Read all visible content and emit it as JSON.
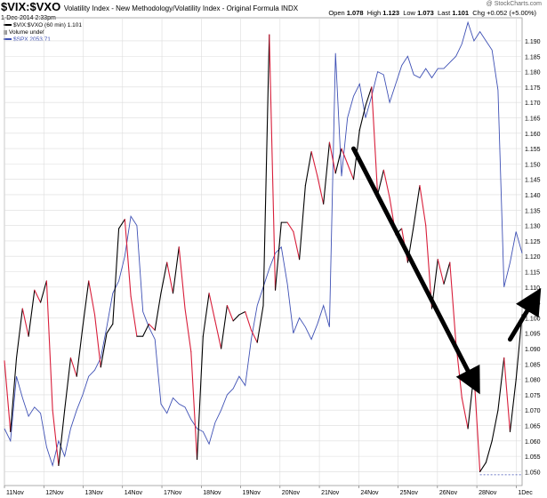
{
  "header": {
    "symbol": "$VIX:$VXO",
    "description": "Volatility Index - New Methodology/Volatility Index - Original Formula INDX",
    "date": "1-Dec-2014 2:33pm",
    "open_label": "Open",
    "open": "1.078",
    "high_label": "High",
    "high": "1.123",
    "low_label": "Low",
    "low": "1.073",
    "last_label": "Last",
    "last": "1.101",
    "chg_label": "Chg",
    "chg": "+0.052 (+5.00%)",
    "watermark": "@ StockCharts.com"
  },
  "legend": [
    {
      "label": "$VIX:$VXO (60 min) 1.101",
      "color": "#000000"
    },
    {
      "label": "Volume undef",
      "color": "#9a9a9a"
    },
    {
      "label": "$SPX 2053.71",
      "color": "#3f51b5"
    }
  ],
  "chart_data": {
    "type": "line",
    "x_labels": [
      "11Nov",
      "12Nov",
      "13Nov",
      "14Nov",
      "17Nov",
      "18Nov",
      "19Nov",
      "20Nov",
      "21Nov",
      "24Nov",
      "25Nov",
      "26Nov",
      "28Nov",
      "1Dec"
    ],
    "y_ticks": [
      1.05,
      1.055,
      1.06,
      1.065,
      1.07,
      1.075,
      1.08,
      1.085,
      1.09,
      1.095,
      1.1,
      1.105,
      1.11,
      1.115,
      1.12,
      1.125,
      1.13,
      1.135,
      1.14,
      1.145,
      1.15,
      1.155,
      1.16,
      1.165,
      1.17,
      1.175,
      1.18,
      1.185,
      1.19
    ],
    "ylim": [
      1.0455,
      1.1975
    ],
    "series": [
      {
        "name": "$VIX:$VXO (60 min) 1.101",
        "colors": {
          "up": "#000000",
          "down": "#d81e3a"
        },
        "values": [
          1.086,
          1.063,
          1.087,
          1.103,
          1.094,
          1.109,
          1.105,
          1.112,
          1.07,
          1.052,
          1.07,
          1.087,
          1.081,
          1.097,
          1.112,
          1.101,
          1.084,
          1.095,
          1.098,
          1.129,
          1.132,
          1.107,
          1.094,
          1.094,
          1.098,
          1.096,
          1.108,
          1.118,
          1.108,
          1.123,
          1.103,
          1.089,
          1.054,
          1.094,
          1.108,
          1.099,
          1.09,
          1.104,
          1.099,
          1.101,
          1.102,
          1.096,
          1.092,
          1.104,
          1.192,
          1.109,
          1.131,
          1.131,
          1.128,
          1.119,
          1.143,
          1.154,
          1.146,
          1.137,
          1.157,
          1.147,
          1.155,
          1.15,
          1.145,
          1.161,
          1.169,
          1.175,
          1.14,
          1.148,
          1.139,
          1.127,
          1.129,
          1.118,
          1.13,
          1.143,
          1.13,
          1.103,
          1.119,
          1.111,
          1.118,
          1.092,
          1.074,
          1.064,
          1.082,
          1.05,
          1.053,
          1.06,
          1.07,
          1.087,
          1.063,
          1.08,
          1.101
        ]
      },
      {
        "name": "$SPX 2053.71",
        "color": "#3f51b5",
        "values": [
          1.064,
          1.06,
          1.081,
          1.074,
          1.068,
          1.071,
          1.069,
          1.058,
          1.052,
          1.06,
          1.055,
          1.064,
          1.07,
          1.075,
          1.081,
          1.083,
          1.087,
          1.097,
          1.108,
          1.112,
          1.12,
          1.133,
          1.13,
          1.102,
          1.097,
          1.093,
          1.072,
          1.069,
          1.074,
          1.072,
          1.071,
          1.067,
          1.064,
          1.063,
          1.059,
          1.066,
          1.07,
          1.075,
          1.077,
          1.081,
          1.078,
          1.093,
          1.104,
          1.11,
          1.116,
          1.121,
          1.123,
          1.111,
          1.095,
          1.1,
          1.097,
          1.093,
          1.098,
          1.104,
          1.097,
          1.186,
          1.146,
          1.165,
          1.172,
          1.176,
          1.165,
          1.172,
          1.18,
          1.179,
          1.17,
          1.176,
          1.182,
          1.185,
          1.179,
          1.178,
          1.181,
          1.178,
          1.181,
          1.181,
          1.183,
          1.185,
          1.189,
          1.196,
          1.19,
          1.193,
          1.19,
          1.187,
          1.174,
          1.11,
          1.118,
          1.128,
          1.121
        ]
      }
    ],
    "arrows": [
      {
        "from": [
          58,
          1.155
        ],
        "to": [
          78,
          1.079
        ]
      },
      {
        "from": [
          84,
          1.093
        ],
        "to": [
          88,
          1.106
        ]
      }
    ]
  }
}
